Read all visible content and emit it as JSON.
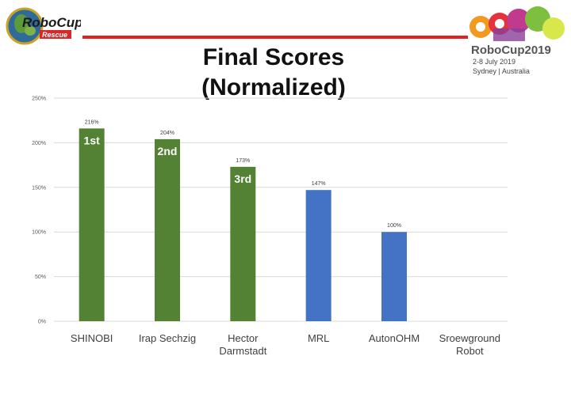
{
  "slide": {
    "title_line1": "Final Scores",
    "title_line2": "(Normalized)",
    "logo_left": {
      "text": "RoboCup",
      "subtext": "Rescue"
    },
    "logo_right": {
      "text": "RoboCup2019",
      "dates": "2-8 July 2019",
      "location": "Sydney | Australia"
    }
  },
  "colors": {
    "podium": "#548235",
    "other": "#4472c4",
    "gridline": "#d9d9d9",
    "title_line": "#e02222"
  },
  "chart_data": {
    "type": "bar",
    "categories": [
      [
        "SHINOBI"
      ],
      [
        "Irap Sechzig"
      ],
      [
        "Hector",
        "Darmstadt"
      ],
      [
        "MRL"
      ],
      [
        "AutonOHM"
      ],
      [
        "Sroewground",
        "Robot"
      ]
    ],
    "values": [
      216,
      204,
      173,
      147,
      100,
      0
    ],
    "data_labels": [
      "216%",
      "204%",
      "173%",
      "147%",
      "100%",
      ""
    ],
    "rank_labels": [
      "1st",
      "2nd",
      "3rd",
      "",
      "",
      ""
    ],
    "bar_colors": [
      "#548235",
      "#548235",
      "#548235",
      "#4472c4",
      "#4472c4",
      "#4472c4"
    ],
    "ylim": [
      0,
      250
    ],
    "yticks": [
      0,
      50,
      100,
      150,
      200,
      250
    ],
    "ytick_labels": [
      "0%",
      "50%",
      "100%",
      "150%",
      "200%",
      "250%"
    ],
    "grid": true,
    "title": "",
    "xlabel": "",
    "ylabel": ""
  }
}
